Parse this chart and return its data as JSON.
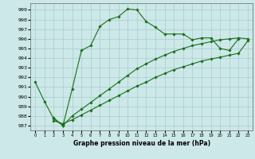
{
  "bg_color": "#cce8e8",
  "grid_color": "#aacccc",
  "line_color": "#1a6e1a",
  "ylim": [
    986.5,
    999.7
  ],
  "xlim": [
    -0.5,
    23.5
  ],
  "yticks": [
    987,
    988,
    989,
    990,
    991,
    992,
    993,
    994,
    995,
    996,
    997,
    998,
    999
  ],
  "xticks": [
    0,
    1,
    2,
    3,
    4,
    5,
    6,
    7,
    8,
    9,
    10,
    11,
    12,
    13,
    14,
    15,
    16,
    17,
    18,
    19,
    20,
    21,
    22,
    23
  ],
  "xlabel": "Graphe pression niveau de la mer (hPa)",
  "line1_x": [
    0,
    1,
    2,
    3,
    4,
    5,
    6,
    7,
    8,
    9,
    10,
    11,
    12,
    13,
    14,
    15,
    16,
    17,
    18,
    19,
    20,
    21,
    22
  ],
  "line1_y": [
    991.5,
    989.5,
    987.7,
    987.0,
    990.8,
    994.8,
    995.3,
    997.3,
    998.0,
    998.3,
    999.1,
    999.0,
    997.8,
    997.2,
    996.5,
    996.5,
    996.5,
    995.9,
    996.1,
    996.1,
    995.0,
    994.8,
    996.0
  ],
  "line2_x": [
    2,
    3,
    4,
    5,
    6,
    7,
    8,
    9,
    10,
    11,
    12,
    13,
    14,
    15,
    16,
    17,
    18,
    19,
    20,
    21,
    22,
    23
  ],
  "line2_y": [
    987.8,
    987.0,
    988.0,
    988.7,
    989.4,
    990.1,
    990.8,
    991.5,
    992.2,
    992.9,
    993.4,
    993.9,
    994.3,
    994.7,
    995.0,
    995.3,
    995.5,
    995.7,
    995.9,
    996.0,
    996.1,
    996.0
  ],
  "line3_x": [
    2,
    3,
    4,
    5,
    6,
    7,
    8,
    9,
    10,
    11,
    12,
    13,
    14,
    15,
    16,
    17,
    18,
    19,
    20,
    21,
    22,
    23
  ],
  "line3_y": [
    987.5,
    987.2,
    987.6,
    988.1,
    988.6,
    989.1,
    989.6,
    990.1,
    990.6,
    991.1,
    991.5,
    992.0,
    992.4,
    992.8,
    993.1,
    993.4,
    993.7,
    993.9,
    994.1,
    994.3,
    994.5,
    995.8
  ]
}
